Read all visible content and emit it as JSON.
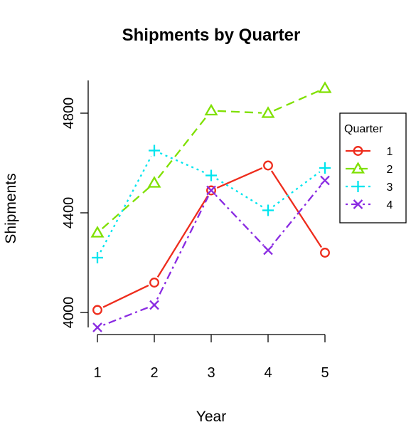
{
  "chart_data": {
    "type": "line",
    "title": "Shipments by Quarter",
    "xlabel": "Year",
    "ylabel": "Shipments",
    "x": [
      1,
      2,
      3,
      4,
      5
    ],
    "x_ticks": [
      "1",
      "2",
      "3",
      "4",
      "5"
    ],
    "y_ticks": [
      "4000",
      "4400",
      "4800"
    ],
    "xlim": [
      1,
      5
    ],
    "ylim": [
      3940,
      4900
    ],
    "grid": false,
    "legend": {
      "title": "Quarter",
      "position": "right"
    },
    "series": [
      {
        "name": "1",
        "color": "#ee2c1c",
        "marker": "circle",
        "dash": "solid",
        "values": [
          4010,
          4120,
          4490,
          4590,
          4240
        ]
      },
      {
        "name": "2",
        "color": "#7fe000",
        "marker": "triangle",
        "dash": "dashed",
        "values": [
          4320,
          4520,
          4810,
          4800,
          4900
        ]
      },
      {
        "name": "3",
        "color": "#00e5ee",
        "marker": "plus",
        "dash": "dotted",
        "values": [
          4220,
          4650,
          4550,
          4410,
          4580
        ]
      },
      {
        "name": "4",
        "color": "#8a2be2",
        "marker": "cross",
        "dash": "dotdash",
        "values": [
          3940,
          4030,
          4490,
          4250,
          4530
        ]
      }
    ]
  }
}
